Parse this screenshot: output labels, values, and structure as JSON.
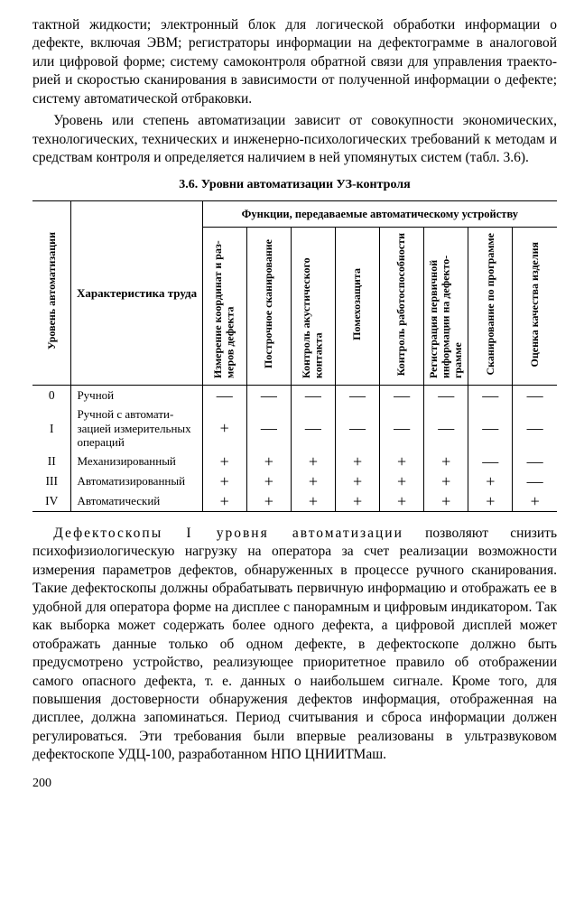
{
  "paragraphs": {
    "p1": "тактной жидкости; электронный блок для логической обработ­ки информации о дефекте, включая ЭВМ; регистраторы инфор­мации на дефектограмме в аналоговой или цифровой форме; систему самоконтроля обратной связи для управления траекто­рией и скоростью сканирования в зависимости от полученной информации о дефекте; систему автоматической отбраковки.",
    "p2": "Уровень или степень автоматизации зависит от совокупно­сти экономических, технологических, технических и инженерно-психологических требований к методам и средствам контроля и определяется наличием в ней упомянутых систем (табл. 3.6).",
    "p3_pre": "Дефектоскопы I уровня автоматизации",
    "p3": "позво­ляют снизить психофизиологическую нагрузку на оператора за счет реализации возможности измерения параметров дефектов, обнаруженных в процессе ручного сканирования. Такие дефек­тоскопы должны обрабатывать первичную информацию и ото­бражать ее в удобной для оператора форме на дисплее с па­норамным и цифровым индикатором. Так как выборка может содержать более одного дефекта, а цифровой дисплей может отображать данные только об одном дефекте, в дефектоскопе должно быть предусмотрено устройство, реализующее приори­тетное правило об отображении самого опасного дефекта, т. е. данных о наибольшем сигнале. Кроме того, для повышения достоверности обнаружения дефектов информация, отображен­ная на дисплее, должна запоминаться. Период считывания и сброса информации должен регулироваться. Эти требования были впервые реализованы в ультразвуковом дефектоскопе УДЦ-100, разработанном НПО ЦНИИТМаш."
  },
  "table": {
    "title": "3.6. Уровни автоматизации УЗ-контроля",
    "head_level": "Уровень автома­тизации",
    "head_char": "Характеристика труда",
    "head_group": "Функции, передаваемые автоматическому устройству",
    "func_cols": [
      "Измерение ко­ординат и раз­меров дефекта",
      "Построчное сканирование",
      "Контроль акустического контакта",
      "Помехозащита",
      "Контроль работоспособ­ности",
      "Регистрация первичной информации на дефекто­грамме",
      "Сканирование по программе",
      "Оценка качества изделия"
    ],
    "rows": [
      {
        "lvl": "0",
        "char": "Ручной",
        "m": [
          "—",
          "—",
          "—",
          "—",
          "—",
          "—",
          "—",
          "—"
        ]
      },
      {
        "lvl": "I",
        "char": "Ручной с автомати­зацией измерительных операций",
        "m": [
          "+",
          "—",
          "—",
          "—",
          "—",
          "—",
          "—",
          "—"
        ]
      },
      {
        "lvl": "II",
        "char": "Механизированный",
        "m": [
          "+",
          "+",
          "+",
          "+",
          "+",
          "+",
          "—",
          "—"
        ]
      },
      {
        "lvl": "III",
        "char": "Автоматизирован­ный",
        "m": [
          "+",
          "+",
          "+",
          "+",
          "+",
          "+",
          "+",
          "—"
        ]
      },
      {
        "lvl": "IV",
        "char": "Автоматический",
        "m": [
          "+",
          "+",
          "+",
          "+",
          "+",
          "+",
          "+",
          "+"
        ]
      }
    ]
  },
  "page_number": "200",
  "style": {
    "colw": {
      "lvl": 42,
      "char": 142,
      "func": 48
    }
  }
}
